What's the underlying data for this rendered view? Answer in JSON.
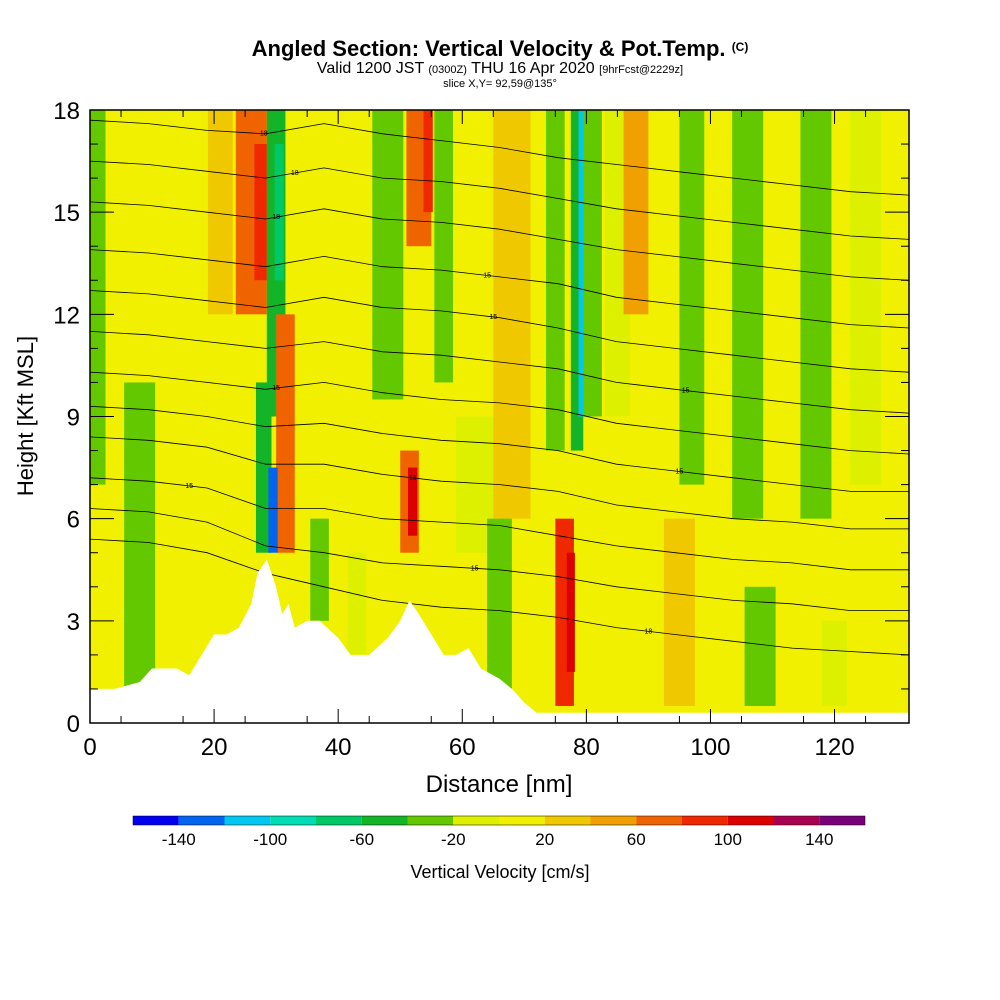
{
  "header": {
    "title": "Angled Section: Vertical Velocity & Pot.Temp.",
    "title_tag": "(C)",
    "valid_prefix": "Valid 1200 JST",
    "valid_z": "(0300Z)",
    "valid_date": "THU 16 Apr 2020",
    "forecast": "[9hrFcst@2229z]",
    "slice": "slice X,Y= 92,59@135°"
  },
  "chart_data": {
    "type": "heatmap",
    "title": "Angled Section: Vertical Velocity & Pot.Temp.",
    "xlabel": "Distance [nm]",
    "ylabel": "Height [Kft MSL]",
    "xlim": [
      0,
      132
    ],
    "ylim": [
      0,
      18
    ],
    "x_ticks": [
      0,
      20,
      40,
      60,
      80,
      100,
      120
    ],
    "y_ticks": [
      0,
      3,
      6,
      9,
      12,
      15,
      18
    ],
    "x_tick_labels": [
      "0",
      "20",
      "40",
      "60",
      "80",
      "100",
      "120"
    ],
    "y_tick_labels": [
      "0",
      "3",
      "6",
      "9",
      "12",
      "15",
      "18"
    ],
    "grid": false,
    "colorbar": {
      "label": "Vertical Velocity [cm/s]",
      "placement": "bottom",
      "tick_values": [
        -140,
        -100,
        -60,
        -20,
        20,
        60,
        100,
        140
      ],
      "tick_labels": [
        "-140",
        "-100",
        "-60",
        "-20",
        "20",
        "60",
        "100",
        "140"
      ],
      "levels": [
        -160,
        -140,
        -120,
        -100,
        -80,
        -60,
        -40,
        -20,
        0,
        20,
        40,
        60,
        80,
        100,
        120,
        140,
        160
      ],
      "colors": [
        "#0000f0",
        "#0064f0",
        "#00c8f0",
        "#00dcb4",
        "#00c864",
        "#14b428",
        "#64c800",
        "#dcf000",
        "#f0f000",
        "#f0c800",
        "#f0a000",
        "#f06400",
        "#f02800",
        "#dc0000",
        "#aa0050",
        "#780078"
      ]
    },
    "columns": [
      {
        "x": 0,
        "w": 5,
        "lo": 7,
        "hi": 18,
        "v": -30
      },
      {
        "x": 8,
        "w": 5,
        "lo": 1,
        "hi": 10,
        "v": -30
      },
      {
        "x": 21,
        "w": 4,
        "lo": 12,
        "hi": 18,
        "v": 30
      },
      {
        "x": 26,
        "w": 5,
        "lo": 12,
        "hi": 18,
        "v": 60
      },
      {
        "x": 27.5,
        "w": 2,
        "lo": 13,
        "hi": 17,
        "v": 90
      },
      {
        "x": 30,
        "w": 3,
        "lo": 9,
        "hi": 18,
        "v": -50
      },
      {
        "x": 30.5,
        "w": 1.5,
        "lo": 13,
        "hi": 17,
        "v": -80
      },
      {
        "x": 31.5,
        "w": 3,
        "lo": 5,
        "hi": 12,
        "v": 60
      },
      {
        "x": 28,
        "w": 2.5,
        "lo": 5,
        "hi": 10,
        "v": -60
      },
      {
        "x": 29.5,
        "w": 1.5,
        "lo": 5,
        "hi": 7.5,
        "v": -140
      },
      {
        "x": 37,
        "w": 3,
        "lo": 3,
        "hi": 6,
        "v": -40
      },
      {
        "x": 43,
        "w": 3,
        "lo": 2,
        "hi": 5,
        "v": -20
      },
      {
        "x": 48,
        "w": 5,
        "lo": 9.5,
        "hi": 18,
        "v": -40
      },
      {
        "x": 53,
        "w": 4,
        "lo": 14,
        "hi": 18,
        "v": 60
      },
      {
        "x": 54.5,
        "w": 1.5,
        "lo": 15,
        "hi": 18,
        "v": 90
      },
      {
        "x": 57,
        "w": 3,
        "lo": 10,
        "hi": 18,
        "v": -30
      },
      {
        "x": 51.5,
        "w": 3,
        "lo": 5,
        "hi": 8,
        "v": 70
      },
      {
        "x": 52,
        "w": 1.5,
        "lo": 5.5,
        "hi": 7.5,
        "v": 110
      },
      {
        "x": 62,
        "w": 6,
        "lo": 5,
        "hi": 9,
        "v": -20
      },
      {
        "x": 68,
        "w": 6,
        "lo": 6,
        "hi": 18,
        "v": 30
      },
      {
        "x": 75,
        "w": 3,
        "lo": 8,
        "hi": 18,
        "v": -40
      },
      {
        "x": 78.5,
        "w": 2,
        "lo": 8,
        "hi": 18,
        "v": -60
      },
      {
        "x": 79.5,
        "w": 1.5,
        "lo": 9,
        "hi": 18,
        "v": -110
      },
      {
        "x": 81,
        "w": 3,
        "lo": 9,
        "hi": 18,
        "v": -40
      },
      {
        "x": 85,
        "w": 4,
        "lo": 9,
        "hi": 18,
        "v": -20
      },
      {
        "x": 88,
        "w": 4,
        "lo": 12,
        "hi": 18,
        "v": 50
      },
      {
        "x": 76.5,
        "w": 3,
        "lo": 0.5,
        "hi": 6,
        "v": 80
      },
      {
        "x": 77.5,
        "w": 1.3,
        "lo": 1.5,
        "hi": 5,
        "v": 110
      },
      {
        "x": 97,
        "w": 4,
        "lo": 7,
        "hi": 18,
        "v": -30
      },
      {
        "x": 106,
        "w": 5,
        "lo": 6,
        "hi": 18,
        "v": -30
      },
      {
        "x": 117,
        "w": 5,
        "lo": 6,
        "hi": 18,
        "v": -30
      },
      {
        "x": 125,
        "w": 5,
        "lo": 7,
        "hi": 18,
        "v": -20
      },
      {
        "x": 95,
        "w": 5,
        "lo": 0.5,
        "hi": 6,
        "v": 30
      },
      {
        "x": 108,
        "w": 5,
        "lo": 0.5,
        "hi": 4,
        "v": -30
      },
      {
        "x": 120,
        "w": 4,
        "lo": 0.5,
        "hi": 3,
        "v": -20
      },
      {
        "x": 66,
        "w": 4,
        "lo": 1,
        "hi": 6,
        "v": -40
      }
    ],
    "terrain": [
      [
        0,
        1
      ],
      [
        4,
        1
      ],
      [
        8,
        1.2
      ],
      [
        10,
        1.6
      ],
      [
        14,
        1.6
      ],
      [
        16,
        1.4
      ],
      [
        18,
        2
      ],
      [
        20,
        2.6
      ],
      [
        22,
        2.6
      ],
      [
        24,
        2.8
      ],
      [
        26,
        3.5
      ],
      [
        27,
        4.4
      ],
      [
        28.5,
        4.8
      ],
      [
        30,
        4
      ],
      [
        31,
        3.2
      ],
      [
        32,
        3.5
      ],
      [
        33,
        2.8
      ],
      [
        35,
        3
      ],
      [
        37,
        3
      ],
      [
        40,
        2.5
      ],
      [
        42,
        2
      ],
      [
        45,
        2
      ],
      [
        48,
        2.5
      ],
      [
        50,
        3
      ],
      [
        51.5,
        3.6
      ],
      [
        53,
        3.2
      ],
      [
        55,
        2.6
      ],
      [
        57,
        2
      ],
      [
        59,
        2
      ],
      [
        61,
        2.2
      ],
      [
        63,
        1.6
      ],
      [
        66,
        1.3
      ],
      [
        68,
        1
      ],
      [
        70,
        0.6
      ],
      [
        72,
        0.3
      ],
      [
        132,
        0.3
      ]
    ],
    "theta_isolines": [
      {
        "label": "18",
        "label_x": 28,
        "y": [
          17.7,
          17.6,
          17.4,
          17.3,
          17.6,
          17.3,
          17.1,
          16.9,
          16.6,
          16.4,
          16.2,
          16.0,
          15.8,
          15.6,
          15.5
        ]
      },
      {
        "label": "18",
        "label_x": 33,
        "y": [
          16.5,
          16.4,
          16.2,
          16.0,
          16.3,
          16.0,
          15.9,
          15.7,
          15.4,
          15.1,
          14.9,
          14.7,
          14.5,
          14.3,
          14.2
        ]
      },
      {
        "label": "18",
        "label_x": 30,
        "y": [
          15.3,
          15.2,
          15.0,
          14.8,
          15.1,
          14.8,
          14.7,
          14.5,
          14.2,
          13.9,
          13.7,
          13.5,
          13.3,
          13.1,
          13.0
        ]
      },
      {
        "label": "15",
        "label_x": 64,
        "y": [
          13.9,
          13.8,
          13.6,
          13.4,
          13.7,
          13.4,
          13.3,
          13.1,
          12.9,
          12.5,
          12.3,
          12.1,
          11.9,
          11.7,
          11.6
        ]
      },
      {
        "label": "15",
        "label_x": 65,
        "y": [
          12.7,
          12.6,
          12.4,
          12.2,
          12.5,
          12.2,
          12.1,
          11.9,
          11.6,
          11.2,
          11.0,
          10.8,
          10.6,
          10.4,
          10.3
        ]
      },
      {
        "label": "15",
        "label_x": 96,
        "y": [
          11.5,
          11.4,
          11.2,
          11.0,
          11.2,
          10.9,
          10.8,
          10.6,
          10.4,
          10.0,
          9.8,
          9.6,
          9.4,
          9.2,
          9.1
        ]
      },
      {
        "label": "15",
        "label_x": 30,
        "y": [
          10.3,
          10.2,
          10.0,
          9.8,
          10.0,
          9.7,
          9.5,
          9.4,
          9.2,
          8.8,
          8.6,
          8.4,
          8.2,
          8.0,
          7.9
        ]
      },
      {
        "label": "15",
        "label_x": 95,
        "y": [
          9.3,
          9.2,
          9.0,
          8.7,
          8.8,
          8.5,
          8.3,
          8.2,
          8.0,
          7.6,
          7.4,
          7.2,
          7.0,
          6.8,
          6.8
        ]
      },
      {
        "label": "15",
        "label_x": 52,
        "y": [
          8.4,
          8.3,
          8.1,
          7.6,
          7.6,
          7.3,
          7.1,
          7.0,
          6.8,
          6.4,
          6.2,
          6.0,
          5.9,
          5.7,
          5.7
        ]
      },
      {
        "label": "15",
        "label_x": 16,
        "y": [
          7.2,
          7.1,
          6.9,
          6.3,
          6.3,
          6.0,
          5.9,
          5.8,
          5.5,
          5.2,
          5.0,
          4.8,
          4.7,
          4.5,
          4.5
        ]
      },
      {
        "label": "15",
        "label_x": 62,
        "y": [
          6.3,
          6.2,
          5.9,
          5.2,
          5.0,
          4.7,
          4.6,
          4.5,
          4.3,
          4.0,
          3.8,
          3.6,
          3.5,
          3.3,
          3.3
        ]
      },
      {
        "label": "18",
        "label_x": 90,
        "y": [
          5.4,
          5.3,
          5.0,
          4.4,
          4.0,
          3.6,
          3.4,
          3.3,
          3.1,
          2.8,
          2.6,
          2.4,
          2.2,
          2.1,
          2.0
        ]
      }
    ]
  }
}
